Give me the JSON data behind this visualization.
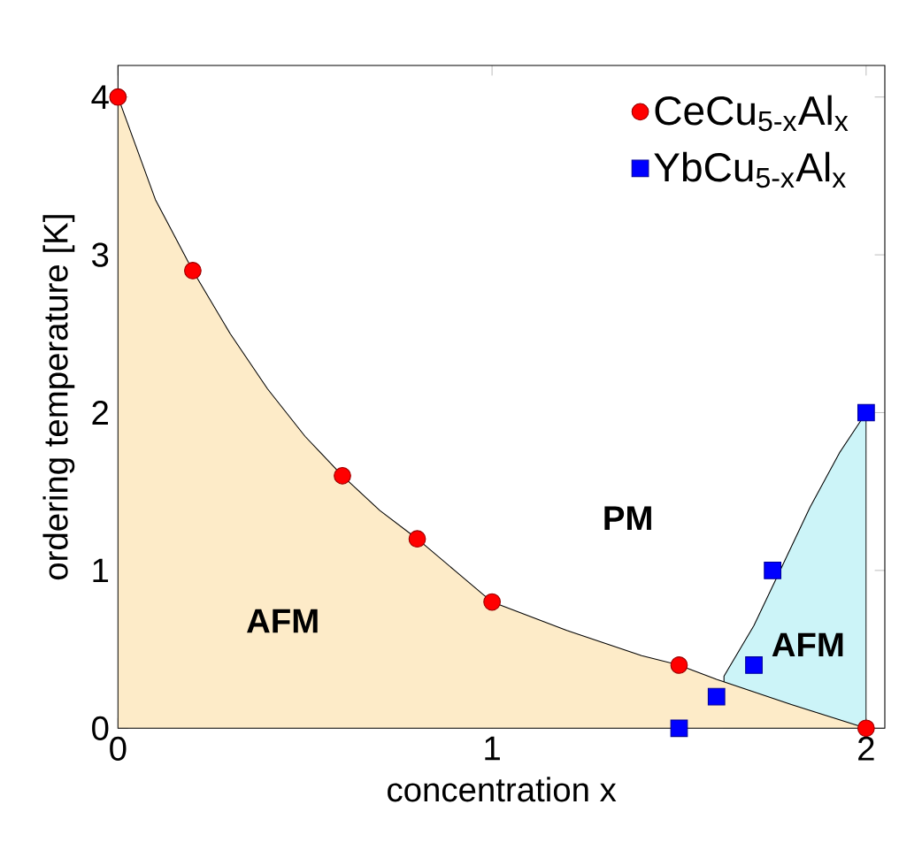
{
  "chart_data": {
    "type": "scatter",
    "xlabel": "concentration x",
    "ylabel": "ordering temperature [K]",
    "xlim": [
      0,
      2.05
    ],
    "ylim": [
      0,
      4.2
    ],
    "xticks": [
      0,
      1,
      2
    ],
    "yticks": [
      0,
      1,
      2,
      3,
      4
    ],
    "grid": false,
    "legend": "top right",
    "series": [
      {
        "type": "area",
        "color": "#ccf4f8",
        "x": [
          1.62,
          1.7,
          1.77,
          1.85,
          1.93,
          2.0
        ],
        "values": [
          0.33,
          0.65,
          1.0,
          1.4,
          1.75,
          2.0
        ]
      },
      {
        "type": "area",
        "color": "#fdebc8",
        "x": [
          0,
          0.1,
          0.2,
          0.3,
          0.4,
          0.5,
          0.6,
          0.7,
          0.8,
          0.9,
          1.0,
          1.2,
          1.4,
          1.5,
          1.6,
          1.8,
          2.0
        ],
        "values": [
          4,
          3.35,
          2.9,
          2.5,
          2.15,
          1.85,
          1.6,
          1.38,
          1.2,
          1.0,
          0.8,
          0.62,
          0.46,
          0.4,
          0.31,
          0.15,
          0
        ]
      },
      {
        "name": "CeCu$_{5-x}$Al$_{x}$",
        "color": "#ff0000",
        "marker": "circle",
        "x": [
          0,
          0.2,
          0.6,
          0.8,
          1.0,
          1.5,
          2.0
        ],
        "values": [
          4,
          2.9,
          1.6,
          1.2,
          0.8,
          0.4,
          0
        ]
      },
      {
        "name": "YbCu$_{5-x}$Al$_{x}$",
        "color": "#0000ff",
        "marker": "square",
        "x": [
          1.5,
          1.6,
          1.7,
          1.75,
          2.0
        ],
        "values": [
          0,
          0.2,
          0.4,
          1.0,
          2.0
        ]
      }
    ],
    "annotations": [
      "PM",
      "AFM",
      "AFM"
    ]
  }
}
